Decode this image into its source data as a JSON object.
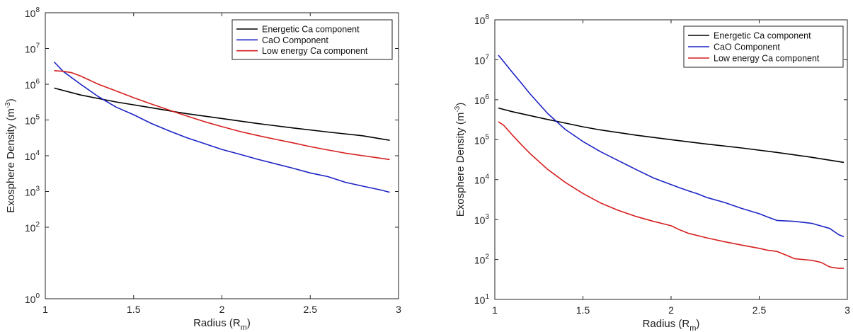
{
  "chart_data": [
    {
      "type": "line",
      "title": "",
      "xlabel": {
        "main": "Radius (R",
        "sub": "m",
        "close": ")"
      },
      "ylabel": {
        "main": "Exosphere Density (m",
        "sup": "-3",
        "close": ")"
      },
      "xlim": [
        1,
        3
      ],
      "ylim": [
        1,
        100000000
      ],
      "yscale": "log",
      "grid": false,
      "legend_position": "top-right",
      "x_ticks": [
        "1",
        "1.5",
        "2",
        "2.5",
        "3"
      ],
      "y_ticks": [
        {
          "base": "10",
          "exp": "0"
        },
        {
          "base": "10",
          "exp": "2"
        },
        {
          "base": "10",
          "exp": "3"
        },
        {
          "base": "10",
          "exp": "4"
        },
        {
          "base": "10",
          "exp": "5"
        },
        {
          "base": "10",
          "exp": "6"
        },
        {
          "base": "10",
          "exp": "7"
        },
        {
          "base": "10",
          "exp": "8"
        }
      ],
      "series": [
        {
          "name": "Energetic Ca component",
          "color": "#000000",
          "x": [
            1.05,
            1.2,
            1.4,
            1.6,
            1.8,
            2.0,
            2.2,
            2.4,
            2.6,
            2.8,
            2.95
          ],
          "y": [
            780000,
            500000,
            320000,
            220000,
            150000,
            110000,
            80000,
            60000,
            46000,
            36000,
            27000
          ]
        },
        {
          "name": "CaO Component",
          "color": "#1c23c4",
          "x": [
            1.05,
            1.1,
            1.2,
            1.3,
            1.4,
            1.5,
            1.6,
            1.7,
            1.8,
            1.9,
            2.0,
            2.1,
            2.2,
            2.3,
            2.4,
            2.5,
            2.6,
            2.7,
            2.8,
            2.9,
            2.95
          ],
          "y": [
            4200000,
            2300000,
            1000000,
            450000,
            230000,
            140000,
            80000,
            50000,
            32000,
            22000,
            15000,
            11000,
            8000,
            6000,
            4500,
            3300,
            2600,
            1800,
            1400,
            1100,
            950
          ]
        },
        {
          "name": "Low energy Ca component",
          "color": "#d61f1f",
          "x": [
            1.05,
            1.1,
            1.15,
            1.2,
            1.3,
            1.4,
            1.5,
            1.6,
            1.7,
            1.8,
            1.9,
            2.0,
            2.1,
            2.2,
            2.3,
            2.4,
            2.5,
            2.6,
            2.7,
            2.8,
            2.9,
            2.95
          ],
          "y": [
            2400000,
            2300000,
            2100000,
            1700000,
            1000000,
            650000,
            420000,
            280000,
            190000,
            130000,
            90000,
            65000,
            48000,
            37000,
            29000,
            23000,
            18000,
            14500,
            11800,
            10000,
            8500,
            7800
          ]
        }
      ]
    },
    {
      "type": "line",
      "title": "",
      "xlabel": {
        "main": "Radius (R",
        "sub": "m",
        "close": ")"
      },
      "ylabel": {
        "main": "Exosphere Density (m",
        "sup": "-3",
        "close": ")"
      },
      "xlim": [
        1,
        3
      ],
      "ylim": [
        10,
        100000000
      ],
      "yscale": "log",
      "grid": false,
      "legend_position": "top-right",
      "x_ticks": [
        "1",
        "1.5",
        "2",
        "2.5",
        "3"
      ],
      "y_ticks": [
        {
          "base": "10",
          "exp": "1"
        },
        {
          "base": "10",
          "exp": "2"
        },
        {
          "base": "10",
          "exp": "3"
        },
        {
          "base": "10",
          "exp": "4"
        },
        {
          "base": "10",
          "exp": "5"
        },
        {
          "base": "10",
          "exp": "6"
        },
        {
          "base": "10",
          "exp": "7"
        },
        {
          "base": "10",
          "exp": "8"
        }
      ],
      "series": [
        {
          "name": "Energetic Ca component",
          "color": "#000000",
          "x": [
            1.02,
            1.1,
            1.2,
            1.3,
            1.4,
            1.5,
            1.6,
            1.8,
            2.0,
            2.2,
            2.4,
            2.6,
            2.8,
            2.98
          ],
          "y": [
            620000,
            500000,
            400000,
            320000,
            260000,
            210000,
            175000,
            130000,
            100000,
            78000,
            62000,
            48000,
            36000,
            27000
          ]
        },
        {
          "name": "CaO Component",
          "color": "#1c23c4",
          "x": [
            1.02,
            1.05,
            1.1,
            1.15,
            1.2,
            1.3,
            1.4,
            1.5,
            1.6,
            1.7,
            1.8,
            1.9,
            2.0,
            2.05,
            2.1,
            2.15,
            2.2,
            2.3,
            2.4,
            2.5,
            2.55,
            2.6,
            2.7,
            2.8,
            2.9,
            2.95,
            2.98
          ],
          "y": [
            13000000,
            9000000,
            4800000,
            2600000,
            1400000,
            450000,
            180000,
            90000,
            50000,
            30000,
            18000,
            11000,
            7500,
            6200,
            5200,
            4400,
            3600,
            2700,
            1900,
            1400,
            1150,
            950,
            900,
            800,
            600,
            420,
            370
          ]
        },
        {
          "name": "Low energy Ca component",
          "color": "#d61f1f",
          "x": [
            1.02,
            1.05,
            1.1,
            1.15,
            1.2,
            1.3,
            1.4,
            1.5,
            1.6,
            1.7,
            1.8,
            1.9,
            2.0,
            2.05,
            2.1,
            2.2,
            2.3,
            2.4,
            2.5,
            2.55,
            2.6,
            2.65,
            2.7,
            2.8,
            2.85,
            2.9,
            2.95,
            2.98
          ],
          "y": [
            280000,
            230000,
            130000,
            75000,
            45000,
            18000,
            8500,
            4500,
            2600,
            1700,
            1200,
            900,
            700,
            550,
            450,
            350,
            280,
            230,
            190,
            170,
            160,
            130,
            105,
            95,
            85,
            65,
            60,
            60
          ]
        }
      ]
    }
  ]
}
